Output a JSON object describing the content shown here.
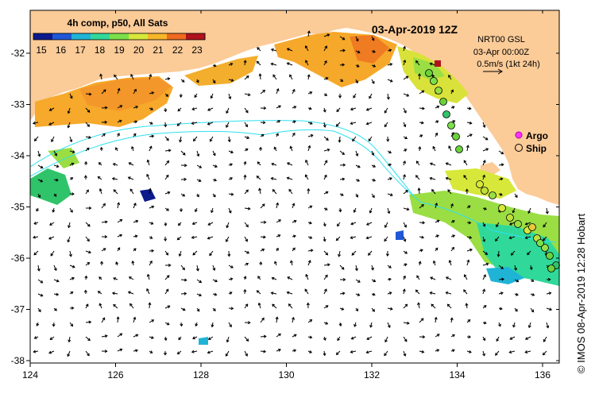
{
  "title": {
    "date": "03-Apr-2019 12Z",
    "product": "4h comp, p50, All Sats"
  },
  "colorbar": {
    "ticks": [
      "15",
      "16",
      "17",
      "18",
      "19",
      "20",
      "21",
      "22",
      "23"
    ],
    "colors": [
      "#0c1a8c",
      "#1f57d6",
      "#1fb4d6",
      "#30d99a",
      "#7be04b",
      "#d7e83a",
      "#f7b62a",
      "#ef6a1f",
      "#b0121c"
    ]
  },
  "annotations": {
    "model": "NRT00 GSL",
    "time": "03-Apr 00:00Z",
    "scale": "0.5m/s (1kt 24h)"
  },
  "legend": {
    "argo": "Argo",
    "ship": "Ship",
    "argo_color": "#ff33ff",
    "ship_color": "#6ad23a"
  },
  "axes": {
    "x_ticks": [
      "124",
      "126",
      "128",
      "130",
      "132",
      "134",
      "136"
    ],
    "y_ticks": [
      "-32",
      "-33",
      "-34",
      "-35",
      "-36",
      "-37",
      "-38"
    ]
  },
  "credit": "© IMOS 08-Apr-2019 12:28 Hobart",
  "colors": {
    "land": "#fbcb98",
    "ocean": "#ffffff",
    "track": "#2ee0f0"
  }
}
